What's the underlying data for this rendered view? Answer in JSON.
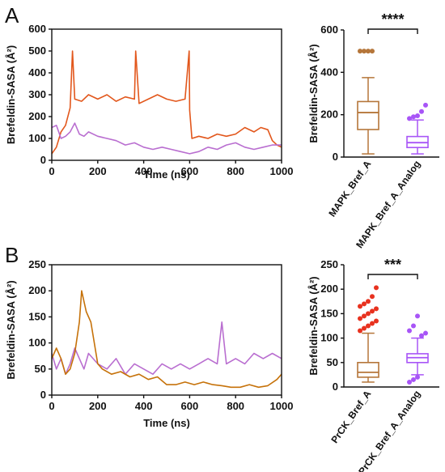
{
  "panels": [
    {
      "label": "A",
      "line_chart": {
        "type": "line",
        "xlabel": "Time (ns)",
        "ylabel": "Brefeldin-SASA (Å²)",
        "xlim": [
          0,
          1000
        ],
        "ylim": [
          0,
          600
        ],
        "xticks": [
          0,
          200,
          400,
          600,
          800,
          1000
        ],
        "yticks": [
          0,
          100,
          200,
          300,
          400,
          500,
          600
        ],
        "series": [
          {
            "color": "#e2571c",
            "points": [
              [
                0,
                30
              ],
              [
                20,
                60
              ],
              [
                40,
                130
              ],
              [
                60,
                160
              ],
              [
                80,
                240
              ],
              [
                90,
                500
              ],
              [
                100,
                280
              ],
              [
                130,
                270
              ],
              [
                160,
                300
              ],
              [
                200,
                280
              ],
              [
                240,
                300
              ],
              [
                280,
                270
              ],
              [
                320,
                290
              ],
              [
                360,
                280
              ],
              [
                365,
                500
              ],
              [
                380,
                260
              ],
              [
                420,
                280
              ],
              [
                460,
                300
              ],
              [
                500,
                280
              ],
              [
                540,
                270
              ],
              [
                580,
                280
              ],
              [
                598,
                500
              ],
              [
                600,
                230
              ],
              [
                610,
                100
              ],
              [
                640,
                110
              ],
              [
                680,
                100
              ],
              [
                720,
                120
              ],
              [
                760,
                110
              ],
              [
                800,
                120
              ],
              [
                840,
                150
              ],
              [
                880,
                130
              ],
              [
                910,
                150
              ],
              [
                940,
                140
              ],
              [
                960,
                90
              ],
              [
                980,
                70
              ],
              [
                1000,
                60
              ]
            ]
          },
          {
            "color": "#b96ed0",
            "points": [
              [
                0,
                150
              ],
              [
                20,
                160
              ],
              [
                40,
                100
              ],
              [
                60,
                110
              ],
              [
                80,
                130
              ],
              [
                100,
                170
              ],
              [
                120,
                120
              ],
              [
                140,
                110
              ],
              [
                160,
                130
              ],
              [
                200,
                110
              ],
              [
                240,
                100
              ],
              [
                280,
                90
              ],
              [
                320,
                70
              ],
              [
                360,
                80
              ],
              [
                400,
                60
              ],
              [
                440,
                50
              ],
              [
                480,
                60
              ],
              [
                520,
                50
              ],
              [
                560,
                40
              ],
              [
                600,
                30
              ],
              [
                640,
                40
              ],
              [
                680,
                60
              ],
              [
                720,
                50
              ],
              [
                760,
                70
              ],
              [
                800,
                80
              ],
              [
                840,
                60
              ],
              [
                880,
                50
              ],
              [
                920,
                60
              ],
              [
                960,
                70
              ],
              [
                1000,
                70
              ]
            ]
          }
        ]
      },
      "box_chart": {
        "type": "box",
        "ylabel": "Brefeldin-SASA (Å²)",
        "ylim": [
          0,
          600
        ],
        "yticks": [
          0,
          200,
          400,
          600
        ],
        "significance": "****",
        "boxes": [
          {
            "category": "MAPK_Bref_A",
            "color": "#b5763a",
            "dot_color": "#b5763a",
            "min": 15,
            "q1": 130,
            "median": 210,
            "q3": 262,
            "max": 375,
            "outliers": [
              500,
              500,
              500,
              500
            ]
          },
          {
            "category": "MAPK_Bref_A_Analog",
            "color": "#a855f7",
            "dot_color": "#a855f7",
            "min": 15,
            "q1": 45,
            "median": 68,
            "q3": 97,
            "max": 175,
            "outliers": [
              182,
              190,
              195,
              215,
              245
            ]
          }
        ]
      }
    },
    {
      "label": "B",
      "line_chart": {
        "type": "line",
        "xlabel": "Time (ns)",
        "ylabel": "Brefeldin-SASA (Å²)",
        "xlim": [
          0,
          1000
        ],
        "ylim": [
          0,
          250
        ],
        "xticks": [
          0,
          200,
          400,
          600,
          800,
          1000
        ],
        "yticks": [
          0,
          50,
          100,
          150,
          200,
          250
        ],
        "series": [
          {
            "color": "#b96ed0",
            "points": [
              [
                0,
                80
              ],
              [
                20,
                50
              ],
              [
                40,
                70
              ],
              [
                60,
                40
              ],
              [
                80,
                60
              ],
              [
                100,
                90
              ],
              [
                120,
                70
              ],
              [
                140,
                50
              ],
              [
                160,
                80
              ],
              [
                200,
                60
              ],
              [
                240,
                50
              ],
              [
                280,
                70
              ],
              [
                320,
                40
              ],
              [
                360,
                60
              ],
              [
                400,
                50
              ],
              [
                440,
                40
              ],
              [
                480,
                60
              ],
              [
                520,
                50
              ],
              [
                560,
                60
              ],
              [
                600,
                50
              ],
              [
                640,
                60
              ],
              [
                680,
                70
              ],
              [
                720,
                60
              ],
              [
                740,
                140
              ],
              [
                760,
                60
              ],
              [
                800,
                70
              ],
              [
                840,
                60
              ],
              [
                880,
                80
              ],
              [
                920,
                70
              ],
              [
                960,
                80
              ],
              [
                1000,
                70
              ]
            ]
          },
          {
            "color": "#c6720a",
            "points": [
              [
                0,
                70
              ],
              [
                20,
                90
              ],
              [
                40,
                70
              ],
              [
                60,
                40
              ],
              [
                80,
                50
              ],
              [
                100,
                80
              ],
              [
                120,
                140
              ],
              [
                130,
                200
              ],
              [
                150,
                160
              ],
              [
                170,
                140
              ],
              [
                200,
                60
              ],
              [
                220,
                50
              ],
              [
                260,
                40
              ],
              [
                300,
                45
              ],
              [
                340,
                35
              ],
              [
                380,
                40
              ],
              [
                420,
                30
              ],
              [
                460,
                35
              ],
              [
                500,
                20
              ],
              [
                540,
                20
              ],
              [
                580,
                25
              ],
              [
                620,
                20
              ],
              [
                660,
                25
              ],
              [
                700,
                20
              ],
              [
                740,
                18
              ],
              [
                780,
                15
              ],
              [
                820,
                15
              ],
              [
                860,
                20
              ],
              [
                900,
                15
              ],
              [
                940,
                18
              ],
              [
                980,
                30
              ],
              [
                1000,
                40
              ]
            ]
          }
        ]
      },
      "box_chart": {
        "type": "box",
        "ylabel": "Brefeldin-SASA (Å²)",
        "ylim": [
          0,
          250
        ],
        "yticks": [
          0,
          50,
          100,
          150,
          200,
          250
        ],
        "significance": "***",
        "boxes": [
          {
            "category": "PrCK_Bref_A",
            "color": "#b5763a",
            "dot_color": "#e8321f",
            "min": 10,
            "q1": 20,
            "median": 30,
            "q3": 50,
            "max": 110,
            "outliers": [
              115,
              120,
              125,
              130,
              135,
              140,
              145,
              150,
              155,
              160,
              165,
              170,
              175,
              185,
              203
            ]
          },
          {
            "category": "PrCK_Bref_A_Analog",
            "color": "#a855f7",
            "dot_color": "#a855f7",
            "min": 25,
            "q1": 50,
            "median": 60,
            "q3": 68,
            "max": 100,
            "outliers": [
              10,
              15,
              20,
              105,
              110,
              115,
              125,
              145
            ]
          }
        ]
      }
    }
  ]
}
